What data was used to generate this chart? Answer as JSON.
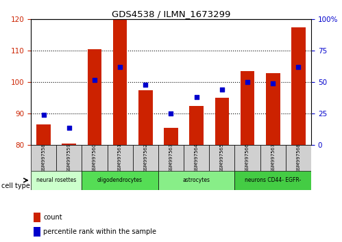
{
  "title": "GDS4538 / ILMN_1673299",
  "samples": [
    "GSM997558",
    "GSM997559",
    "GSM997560",
    "GSM997561",
    "GSM997562",
    "GSM997563",
    "GSM997564",
    "GSM997565",
    "GSM997566",
    "GSM997567",
    "GSM997568"
  ],
  "count_values": [
    86.5,
    80.5,
    110.5,
    120.0,
    97.5,
    85.5,
    92.5,
    95.0,
    103.5,
    103.0,
    117.5
  ],
  "percentile_values": [
    24,
    14,
    52,
    62,
    48,
    25,
    38,
    44,
    50,
    49,
    62
  ],
  "ylim_left": [
    80,
    120
  ],
  "ylim_right": [
    0,
    100
  ],
  "yticks_left": [
    80,
    90,
    100,
    110,
    120
  ],
  "yticks_right": [
    0,
    25,
    50,
    75,
    100
  ],
  "cell_type_groups": [
    {
      "label": "neural rosettes",
      "start": 0,
      "end": 2,
      "color": "#ccffcc"
    },
    {
      "label": "oligodendrocytes",
      "start": 2,
      "end": 5,
      "color": "#55dd55"
    },
    {
      "label": "astrocytes",
      "start": 5,
      "end": 8,
      "color": "#88ee88"
    },
    {
      "label": "neurons CD44- EGFR-",
      "start": 8,
      "end": 11,
      "color": "#44cc44"
    }
  ],
  "bar_color": "#cc2200",
  "dot_color": "#0000cc",
  "bar_width": 0.55,
  "bg_color": "#ffffff",
  "tick_label_color_left": "#cc2200",
  "tick_label_color_right": "#0000cc",
  "legend_count_color": "#cc2200",
  "legend_pct_color": "#0000cc",
  "sample_box_color": "#d0d0d0",
  "grid_lines": [
    90,
    100,
    110
  ]
}
